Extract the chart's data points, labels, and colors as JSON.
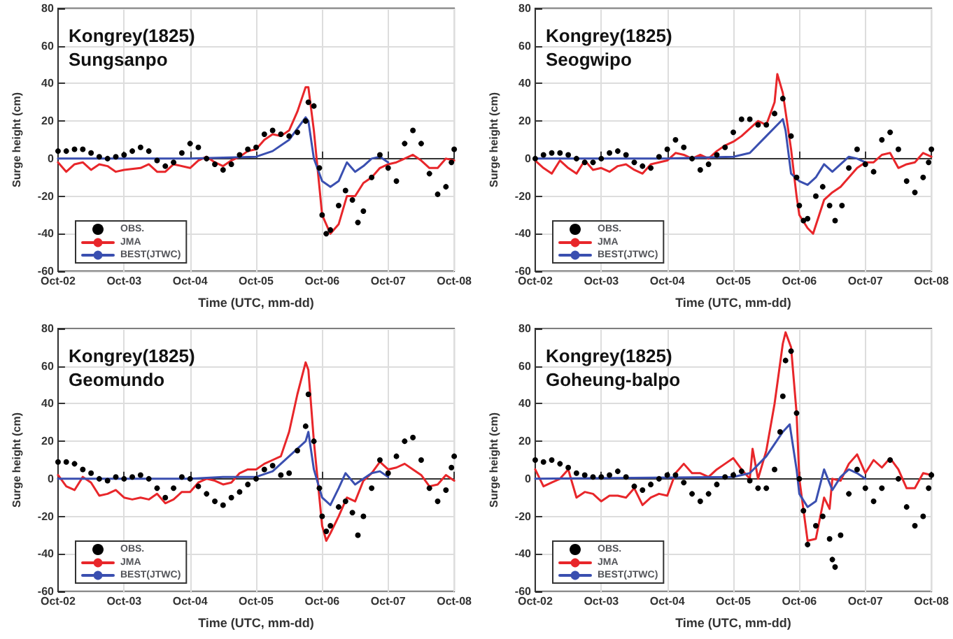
{
  "chart_data": [
    {
      "type": "line",
      "title": "Kongrey(1825)\nSungsanpo",
      "xlabel": "Time (UTC, mm-dd)",
      "ylabel": "Surge height (cm)",
      "xlim": [
        "--10-02",
        "--10-08"
      ],
      "xticks": [
        {
          "value": "--10-02",
          "label": "Oct-02"
        },
        {
          "value": "--10-03",
          "label": "Oct-03"
        },
        {
          "value": "--10-04",
          "label": "Oct-04"
        },
        {
          "value": "--10-05",
          "label": "Oct-05"
        },
        {
          "value": "--10-06",
          "label": "Oct-06"
        },
        {
          "value": "--10-07",
          "label": "Oct-07"
        },
        {
          "value": "--10-08",
          "label": "Oct-08"
        }
      ],
      "ylim": [
        -60,
        80
      ],
      "yticks": [
        -60,
        -40,
        -20,
        0,
        20,
        40,
        60,
        80
      ],
      "grid": true,
      "legend": "bottom left",
      "series": [
        {
          "name": "OBS.",
          "type": "scatter",
          "marker": "circle",
          "color": "#000000",
          "x": [
            "--10-02T00:00",
            "--10-02T03:00",
            "--10-02T06:00",
            "--10-02T09:00",
            "--10-02T12:00",
            "--10-02T15:00",
            "--10-02T18:00",
            "--10-02T21:00",
            "--10-03T00:00",
            "--10-03T03:00",
            "--10-03T06:00",
            "--10-03T09:00",
            "--10-03T12:00",
            "--10-03T15:00",
            "--10-03T18:00",
            "--10-03T21:00",
            "--10-04T00:00",
            "--10-04T03:00",
            "--10-04T06:00",
            "--10-04T09:00",
            "--10-04T12:00",
            "--10-04T15:00",
            "--10-04T18:00",
            "--10-04T21:00",
            "--10-05T00:00",
            "--10-05T03:00",
            "--10-05T06:00",
            "--10-05T09:00",
            "--10-05T12:00",
            "--10-05T15:00",
            "--10-05T18:00",
            "--10-05T19:00",
            "--10-05T21:00",
            "--10-05T23:00",
            "--10-06T00:00",
            "--10-06T01:30",
            "--10-06T03:00",
            "--10-06T06:00",
            "--10-06T08:30",
            "--10-06T11:00",
            "--10-06T13:00",
            "--10-06T15:00",
            "--10-06T18:00",
            "--10-06T21:00",
            "--10-07T00:00",
            "--10-07T03:00",
            "--10-07T06:00",
            "--10-07T09:00",
            "--10-07T12:00",
            "--10-07T15:00",
            "--10-07T18:00",
            "--10-07T21:00",
            "--10-07T23:00",
            "--10-08T00:00"
          ],
          "values": [
            4,
            4,
            5,
            5,
            3,
            1,
            0,
            1,
            2,
            4,
            6,
            4,
            -1,
            -4,
            -2,
            3,
            8,
            6,
            0,
            -3,
            -6,
            -3,
            2,
            5,
            6,
            13,
            15,
            13,
            12,
            14,
            20,
            30,
            28,
            -5,
            -30,
            -40,
            -38,
            -25,
            -17,
            -22,
            -34,
            -28,
            -10,
            2,
            -5,
            -12,
            8,
            15,
            8,
            -8,
            -19,
            -15,
            -2,
            5
          ]
        },
        {
          "name": "JMA",
          "type": "line",
          "marker": "none",
          "color": "#e8262a",
          "x": [
            "--10-02T00:00",
            "--10-02T03:00",
            "--10-02T06:00",
            "--10-02T09:00",
            "--10-02T12:00",
            "--10-02T15:00",
            "--10-02T18:00",
            "--10-02T21:00",
            "--10-03T00:00",
            "--10-03T06:00",
            "--10-03T09:00",
            "--10-03T12:00",
            "--10-03T15:00",
            "--10-03T18:00",
            "--10-04T00:00",
            "--10-04T03:00",
            "--10-04T06:00",
            "--10-04T09:00",
            "--10-04T12:00",
            "--10-04T15:00",
            "--10-04T18:00",
            "--10-04T21:00",
            "--10-05T00:00",
            "--10-05T03:00",
            "--10-05T06:00",
            "--10-05T09:00",
            "--10-05T12:00",
            "--10-05T15:00",
            "--10-05T18:00",
            "--10-05T19:00",
            "--10-05T21:00",
            "--10-05T23:00",
            "--10-06T00:00",
            "--10-06T03:00",
            "--10-06T06:00",
            "--10-06T09:00",
            "--10-06T12:00",
            "--10-06T15:00",
            "--10-06T18:00",
            "--10-06T21:00",
            "--10-07T00:00",
            "--10-07T03:00",
            "--10-07T06:00",
            "--10-07T09:00",
            "--10-07T12:00",
            "--10-07T15:00",
            "--10-07T18:00",
            "--10-07T21:00",
            "--10-08T00:00"
          ],
          "values": [
            -2,
            -7,
            -3,
            -2,
            -6,
            -3,
            -4,
            -7,
            -6,
            -5,
            -3,
            -7,
            -7,
            -3,
            -5,
            -1,
            1,
            -2,
            -4,
            -1,
            1,
            4,
            5,
            10,
            13,
            12,
            15,
            25,
            38,
            38,
            15,
            -15,
            -30,
            -40,
            -35,
            -20,
            -20,
            -13,
            -10,
            -5,
            -3,
            -2,
            0,
            2,
            -1,
            -5,
            -5,
            0,
            -1
          ]
        },
        {
          "name": "BEST(JTWC)",
          "type": "line",
          "marker": "none",
          "color": "#3a4fb0",
          "x": [
            "--10-02T00:00",
            "--10-04T00:00",
            "--10-05T00:00",
            "--10-05T06:00",
            "--10-05T12:00",
            "--10-05T18:00",
            "--10-05T19:00",
            "--10-05T21:00",
            "--10-06T00:00",
            "--10-06T03:00",
            "--10-06T06:00",
            "--10-06T09:00",
            "--10-06T12:00",
            "--10-06T15:00",
            "--10-06T18:00",
            "--10-06T21:00",
            "--10-07T00:00"
          ],
          "values": [
            0,
            0,
            1,
            4,
            10,
            22,
            20,
            0,
            -12,
            -15,
            -12,
            -2,
            -7,
            -4,
            0,
            1,
            -2
          ]
        }
      ]
    },
    {
      "type": "line",
      "title": "Kongrey(1825)\nSeogwipo",
      "xlabel": "Time (UTC, mm-dd)",
      "ylabel": "Surge height (cm)",
      "xlim": [
        "--10-02",
        "--10-08"
      ],
      "xticks": [
        {
          "value": "--10-02",
          "label": "Oct-02"
        },
        {
          "value": "--10-03",
          "label": "Oct-03"
        },
        {
          "value": "--10-04",
          "label": "Oct-04"
        },
        {
          "value": "--10-05",
          "label": "Oct-05"
        },
        {
          "value": "--10-06",
          "label": "Oct-06"
        },
        {
          "value": "--10-07",
          "label": "Oct-07"
        },
        {
          "value": "--10-08",
          "label": "Oct-08"
        }
      ],
      "ylim": [
        -60,
        80
      ],
      "yticks": [
        -60,
        -40,
        -20,
        0,
        20,
        40,
        60,
        80
      ],
      "grid": true,
      "legend": "bottom left",
      "series": [
        {
          "name": "OBS.",
          "type": "scatter",
          "marker": "circle",
          "color": "#000000",
          "x": [
            "--10-02T00:00",
            "--10-02T03:00",
            "--10-02T06:00",
            "--10-02T09:00",
            "--10-02T12:00",
            "--10-02T15:00",
            "--10-02T18:00",
            "--10-02T21:00",
            "--10-03T00:00",
            "--10-03T03:00",
            "--10-03T06:00",
            "--10-03T09:00",
            "--10-03T12:00",
            "--10-03T15:00",
            "--10-03T18:00",
            "--10-03T21:00",
            "--10-04T00:00",
            "--10-04T03:00",
            "--10-04T06:00",
            "--10-04T09:00",
            "--10-04T12:00",
            "--10-04T15:00",
            "--10-04T18:00",
            "--10-04T21:00",
            "--10-05T00:00",
            "--10-05T03:00",
            "--10-05T06:00",
            "--10-05T09:00",
            "--10-05T12:00",
            "--10-05T15:00",
            "--10-05T18:00",
            "--10-05T21:00",
            "--10-05T23:00",
            "--10-06T00:00",
            "--10-06T01:30",
            "--10-06T03:00",
            "--10-06T06:00",
            "--10-06T08:30",
            "--10-06T11:00",
            "--10-06T13:00",
            "--10-06T15:30",
            "--10-06T18:00",
            "--10-06T21:00",
            "--10-07T00:00",
            "--10-07T03:00",
            "--10-07T06:00",
            "--10-07T09:00",
            "--10-07T12:00",
            "--10-07T15:00",
            "--10-07T18:00",
            "--10-07T21:00",
            "--10-07T23:00",
            "--10-08T00:00"
          ],
          "values": [
            0,
            2,
            3,
            3,
            2,
            0,
            -2,
            -2,
            0,
            3,
            4,
            2,
            -2,
            -4,
            -5,
            1,
            5,
            10,
            6,
            0,
            -6,
            -3,
            2,
            6,
            14,
            21,
            21,
            18,
            18,
            24,
            32,
            12,
            -10,
            -25,
            -33,
            -32,
            -20,
            -15,
            -25,
            -33,
            -25,
            -5,
            5,
            -3,
            -7,
            10,
            14,
            5,
            -12,
            -18,
            -10,
            -2,
            5
          ]
        },
        {
          "name": "JMA",
          "type": "line",
          "marker": "none",
          "color": "#e8262a",
          "x": [
            "--10-02T00:00",
            "--10-02T03:00",
            "--10-02T06:00",
            "--10-02T09:00",
            "--10-02T12:00",
            "--10-02T15:00",
            "--10-02T18:00",
            "--10-02T21:00",
            "--10-03T00:00",
            "--10-03T03:00",
            "--10-03T06:00",
            "--10-03T09:00",
            "--10-03T12:00",
            "--10-03T15:00",
            "--10-03T18:00",
            "--10-03T21:00",
            "--10-04T00:00",
            "--10-04T03:00",
            "--10-04T06:00",
            "--10-04T09:00",
            "--10-04T12:00",
            "--10-04T15:00",
            "--10-04T18:00",
            "--10-04T21:00",
            "--10-05T00:00",
            "--10-05T03:00",
            "--10-05T06:00",
            "--10-05T09:00",
            "--10-05T12:00",
            "--10-05T15:00",
            "--10-05T16:00",
            "--10-05T18:00",
            "--10-05T21:00",
            "--10-05T23:00",
            "--10-06T00:00",
            "--10-06T03:00",
            "--10-06T05:00",
            "--10-06T09:00",
            "--10-06T12:00",
            "--10-06T15:00",
            "--10-06T18:00",
            "--10-06T21:00",
            "--10-07T00:00",
            "--10-07T03:00",
            "--10-07T06:00",
            "--10-07T09:00",
            "--10-07T12:00",
            "--10-07T15:00",
            "--10-07T18:00",
            "--10-07T21:00",
            "--10-08T00:00"
          ],
          "values": [
            -1,
            -5,
            -8,
            -1,
            -5,
            -8,
            -1,
            -6,
            -5,
            -7,
            -4,
            -3,
            -6,
            -8,
            -3,
            -2,
            -1,
            3,
            2,
            0,
            2,
            0,
            4,
            7,
            9,
            12,
            16,
            20,
            18,
            30,
            45,
            35,
            5,
            -20,
            -30,
            -37,
            -40,
            -22,
            -18,
            -15,
            -10,
            -5,
            -2,
            -2,
            2,
            3,
            -5,
            -3,
            -2,
            3,
            1
          ]
        },
        {
          "name": "BEST(JTWC)",
          "type": "line",
          "marker": "none",
          "color": "#3a4fb0",
          "x": [
            "--10-02T00:00",
            "--10-04T00:00",
            "--10-05T00:00",
            "--10-05T06:00",
            "--10-05T12:00",
            "--10-05T18:00",
            "--10-05T19:00",
            "--10-05T21:00",
            "--10-06T00:00",
            "--10-06T03:00",
            "--10-06T06:00",
            "--10-06T09:00",
            "--10-06T12:00",
            "--10-06T15:00",
            "--10-06T18:00",
            "--10-06T21:00",
            "--10-07T00:00"
          ],
          "values": [
            0,
            0,
            1,
            3,
            12,
            21,
            15,
            -8,
            -12,
            -14,
            -10,
            -3,
            -7,
            -3,
            1,
            0,
            -2
          ]
        }
      ]
    },
    {
      "type": "line",
      "title": "Kongrey(1825)\nGeomundo",
      "xlabel": "Time (UTC, mm-dd)",
      "ylabel": "Surge height (cm)",
      "xlim": [
        "--10-02",
        "--10-08"
      ],
      "xticks": [
        {
          "value": "--10-02",
          "label": "Oct-02"
        },
        {
          "value": "--10-03",
          "label": "Oct-03"
        },
        {
          "value": "--10-04",
          "label": "Oct-04"
        },
        {
          "value": "--10-05",
          "label": "Oct-05"
        },
        {
          "value": "--10-06",
          "label": "Oct-06"
        },
        {
          "value": "--10-07",
          "label": "Oct-07"
        },
        {
          "value": "--10-08",
          "label": "Oct-08"
        }
      ],
      "ylim": [
        -60,
        80
      ],
      "yticks": [
        -60,
        -40,
        -20,
        0,
        20,
        40,
        60,
        80
      ],
      "grid": true,
      "legend": "bottom left",
      "series": [
        {
          "name": "OBS.",
          "type": "scatter",
          "marker": "circle",
          "color": "#000000",
          "x": [
            "--10-02T00:00",
            "--10-02T03:00",
            "--10-02T06:00",
            "--10-02T09:00",
            "--10-02T12:00",
            "--10-02T15:00",
            "--10-02T18:00",
            "--10-02T21:00",
            "--10-03T00:00",
            "--10-03T03:00",
            "--10-03T06:00",
            "--10-03T09:00",
            "--10-03T12:00",
            "--10-03T15:00",
            "--10-03T18:00",
            "--10-03T21:00",
            "--10-04T00:00",
            "--10-04T03:00",
            "--10-04T06:00",
            "--10-04T09:00",
            "--10-04T12:00",
            "--10-04T15:00",
            "--10-04T18:00",
            "--10-04T21:00",
            "--10-05T00:00",
            "--10-05T03:00",
            "--10-05T06:00",
            "--10-05T09:00",
            "--10-05T12:00",
            "--10-05T15:00",
            "--10-05T18:00",
            "--10-05T19:00",
            "--10-05T21:00",
            "--10-05T23:00",
            "--10-06T00:00",
            "--10-06T01:30",
            "--10-06T03:00",
            "--10-06T06:00",
            "--10-06T08:30",
            "--10-06T11:00",
            "--10-06T13:00",
            "--10-06T15:00",
            "--10-06T18:00",
            "--10-06T21:00",
            "--10-07T00:00",
            "--10-07T03:00",
            "--10-07T06:00",
            "--10-07T09:00",
            "--10-07T12:00",
            "--10-07T15:00",
            "--10-07T18:00",
            "--10-07T21:00",
            "--10-07T23:00",
            "--10-08T00:00"
          ],
          "values": [
            9,
            9,
            8,
            5,
            3,
            0,
            -1,
            1,
            0,
            1,
            2,
            0,
            -5,
            -10,
            -5,
            1,
            0,
            -4,
            -8,
            -12,
            -14,
            -10,
            -7,
            -3,
            0,
            5,
            7,
            2,
            3,
            15,
            28,
            45,
            20,
            -5,
            -20,
            -28,
            -25,
            -15,
            -12,
            -18,
            -30,
            -20,
            -5,
            10,
            3,
            12,
            20,
            22,
            10,
            -5,
            -12,
            -6,
            6,
            12
          ]
        },
        {
          "name": "JMA",
          "type": "line",
          "marker": "none",
          "color": "#e8262a",
          "x": [
            "--10-02T00:00",
            "--10-02T03:00",
            "--10-02T06:00",
            "--10-02T09:00",
            "--10-02T12:00",
            "--10-02T15:00",
            "--10-02T18:00",
            "--10-02T21:00",
            "--10-03T00:00",
            "--10-03T03:00",
            "--10-03T06:00",
            "--10-03T09:00",
            "--10-03T12:00",
            "--10-03T15:00",
            "--10-03T18:00",
            "--10-03T21:00",
            "--10-04T00:00",
            "--10-04T03:00",
            "--10-04T06:00",
            "--10-04T09:00",
            "--10-04T12:00",
            "--10-04T15:00",
            "--10-04T18:00",
            "--10-04T21:00",
            "--10-05T00:00",
            "--10-05T03:00",
            "--10-05T06:00",
            "--10-05T09:00",
            "--10-05T12:00",
            "--10-05T15:00",
            "--10-05T18:00",
            "--10-05T19:00",
            "--10-05T21:00",
            "--10-05T23:00",
            "--10-06T00:00",
            "--10-06T01:30",
            "--10-06T03:00",
            "--10-06T06:00",
            "--10-06T09:00",
            "--10-06T12:00",
            "--10-06T15:00",
            "--10-06T18:00",
            "--10-06T21:00",
            "--10-07T00:00",
            "--10-07T03:00",
            "--10-07T06:00",
            "--10-07T09:00",
            "--10-07T12:00",
            "--10-07T15:00",
            "--10-07T18:00",
            "--10-07T21:00",
            "--10-08T00:00"
          ],
          "values": [
            2,
            -4,
            -6,
            1,
            -2,
            -9,
            -8,
            -6,
            -10,
            -11,
            -10,
            -11,
            -8,
            -13,
            -11,
            -7,
            -7,
            -2,
            0,
            -1,
            -3,
            -2,
            3,
            5,
            5,
            8,
            10,
            12,
            25,
            45,
            62,
            58,
            20,
            -10,
            -25,
            -33,
            -29,
            -20,
            -10,
            -12,
            -1,
            3,
            9,
            5,
            6,
            8,
            5,
            2,
            -4,
            -3,
            2,
            -1
          ]
        },
        {
          "name": "BEST(JTWC)",
          "type": "line",
          "marker": "none",
          "color": "#3a4fb0",
          "x": [
            "--10-02T00:00",
            "--10-04T00:00",
            "--10-04T12:00",
            "--10-05T00:00",
            "--10-05T06:00",
            "--10-05T12:00",
            "--10-05T18:00",
            "--10-05T19:00",
            "--10-05T21:00",
            "--10-06T00:00",
            "--10-06T03:00",
            "--10-06T06:00",
            "--10-06T08:30",
            "--10-06T12:00",
            "--10-06T15:00",
            "--10-06T18:00",
            "--10-06T21:00",
            "--10-07T00:00"
          ],
          "values": [
            0,
            0,
            1,
            1,
            4,
            12,
            20,
            25,
            5,
            -10,
            -14,
            -5,
            3,
            -3,
            0,
            3,
            4,
            1
          ]
        }
      ]
    },
    {
      "type": "line",
      "title": "Kongrey(1825)\nGoheung-balpo",
      "xlabel": "Time (UTC, mm-dd)",
      "ylabel": "Surge height (cm)",
      "xlim": [
        "--10-02",
        "--10-08"
      ],
      "xticks": [
        {
          "value": "--10-02",
          "label": "Oct-02"
        },
        {
          "value": "--10-03",
          "label": "Oct-03"
        },
        {
          "value": "--10-04",
          "label": "Oct-04"
        },
        {
          "value": "--10-05",
          "label": "Oct-05"
        },
        {
          "value": "--10-06",
          "label": "Oct-06"
        },
        {
          "value": "--10-07",
          "label": "Oct-07"
        },
        {
          "value": "--10-08",
          "label": "Oct-08"
        }
      ],
      "ylim": [
        -60,
        80
      ],
      "yticks": [
        -60,
        -40,
        -20,
        0,
        20,
        40,
        60,
        80
      ],
      "grid": true,
      "legend": "bottom left",
      "series": [
        {
          "name": "OBS.",
          "type": "scatter",
          "marker": "circle",
          "color": "#000000",
          "x": [
            "--10-02T00:00",
            "--10-02T03:00",
            "--10-02T06:00",
            "--10-02T09:00",
            "--10-02T12:00",
            "--10-02T15:00",
            "--10-02T18:00",
            "--10-02T21:00",
            "--10-03T00:00",
            "--10-03T03:00",
            "--10-03T06:00",
            "--10-03T09:00",
            "--10-03T12:00",
            "--10-03T15:00",
            "--10-03T18:00",
            "--10-03T21:00",
            "--10-04T00:00",
            "--10-04T03:00",
            "--10-04T06:00",
            "--10-04T09:00",
            "--10-04T12:00",
            "--10-04T15:00",
            "--10-04T18:00",
            "--10-04T21:00",
            "--10-05T00:00",
            "--10-05T03:00",
            "--10-05T06:00",
            "--10-05T09:00",
            "--10-05T12:00",
            "--10-05T15:00",
            "--10-05T17:00",
            "--10-05T18:00",
            "--10-05T19:00",
            "--10-05T21:00",
            "--10-05T23:00",
            "--10-06T00:00",
            "--10-06T01:30",
            "--10-06T03:00",
            "--10-06T06:00",
            "--10-06T08:30",
            "--10-06T11:00",
            "--10-06T12:00",
            "--10-06T13:00",
            "--10-06T15:00",
            "--10-06T18:00",
            "--10-06T21:00",
            "--10-07T00:00",
            "--10-07T03:00",
            "--10-07T06:00",
            "--10-07T09:00",
            "--10-07T12:00",
            "--10-07T15:00",
            "--10-07T18:00",
            "--10-07T21:00",
            "--10-07T23:00",
            "--10-08T00:00"
          ],
          "values": [
            10,
            9,
            10,
            8,
            6,
            3,
            2,
            1,
            1,
            2,
            4,
            1,
            -4,
            -6,
            -3,
            0,
            2,
            2,
            -2,
            -8,
            -12,
            -8,
            -3,
            1,
            2,
            4,
            -1,
            -5,
            -5,
            5,
            25,
            44,
            63,
            68,
            35,
            0,
            -17,
            -35,
            -25,
            -20,
            -32,
            -43,
            -47,
            -30,
            -8,
            5,
            -5,
            -12,
            -5,
            10,
            0,
            -15,
            -25,
            -20,
            -5,
            2
          ]
        },
        {
          "name": "JMA",
          "type": "line",
          "marker": "none",
          "color": "#e8262a",
          "x": [
            "--10-02T00:00",
            "--10-02T03:00",
            "--10-02T06:00",
            "--10-02T09:00",
            "--10-02T12:00",
            "--10-02T15:00",
            "--10-02T18:00",
            "--10-02T21:00",
            "--10-03T00:00",
            "--10-03T03:00",
            "--10-03T06:00",
            "--10-03T09:00",
            "--10-03T12:00",
            "--10-03T15:00",
            "--10-03T18:00",
            "--10-03T21:00",
            "--10-04T00:00",
            "--10-04T03:00",
            "--10-04T06:00",
            "--10-04T09:00",
            "--10-04T12:00",
            "--10-04T15:00",
            "--10-04T18:00",
            "--10-04T21:00",
            "--10-05T00:00",
            "--10-05T03:00",
            "--10-05T06:00",
            "--10-05T07:00",
            "--10-05T09:00",
            "--10-05T12:00",
            "--10-05T15:00",
            "--10-05T18:00",
            "--10-05T19:00",
            "--10-05T21:00",
            "--10-05T23:00",
            "--10-06T00:00",
            "--10-06T03:00",
            "--10-06T06:00",
            "--10-06T09:00",
            "--10-06T11:00",
            "--10-06T12:00",
            "--10-06T15:00",
            "--10-06T18:00",
            "--10-06T21:00",
            "--10-07T00:00",
            "--10-07T03:00",
            "--10-07T06:00",
            "--10-07T09:00",
            "--10-07T12:00",
            "--10-07T15:00",
            "--10-07T18:00",
            "--10-07T21:00",
            "--10-08T00:00"
          ],
          "values": [
            5,
            -4,
            -2,
            0,
            5,
            -10,
            -7,
            -8,
            -12,
            -9,
            -9,
            -10,
            -5,
            -14,
            -10,
            -8,
            -9,
            3,
            8,
            3,
            3,
            1,
            5,
            8,
            11,
            5,
            0,
            16,
            0,
            15,
            40,
            72,
            78,
            70,
            35,
            0,
            -33,
            -32,
            -10,
            -16,
            0,
            -1,
            8,
            13,
            3,
            10,
            6,
            11,
            5,
            -5,
            -5,
            3,
            2
          ]
        },
        {
          "name": "BEST(JTWC)",
          "type": "line",
          "marker": "none",
          "color": "#3a4fb0",
          "x": [
            "--10-02T00:00",
            "--10-05T00:00",
            "--10-05T06:00",
            "--10-05T12:00",
            "--10-05T18:00",
            "--10-05T20:30",
            "--10-05T23:00",
            "--10-06T00:00",
            "--10-06T03:00",
            "--10-06T06:00",
            "--10-06T09:00",
            "--10-06T12:00",
            "--10-06T15:00",
            "--10-06T18:00",
            "--10-06T21:00",
            "--10-07T00:00"
          ],
          "values": [
            0,
            1,
            3,
            12,
            25,
            29,
            5,
            -8,
            -15,
            -12,
            5,
            -6,
            1,
            5,
            3,
            0
          ]
        }
      ]
    }
  ]
}
